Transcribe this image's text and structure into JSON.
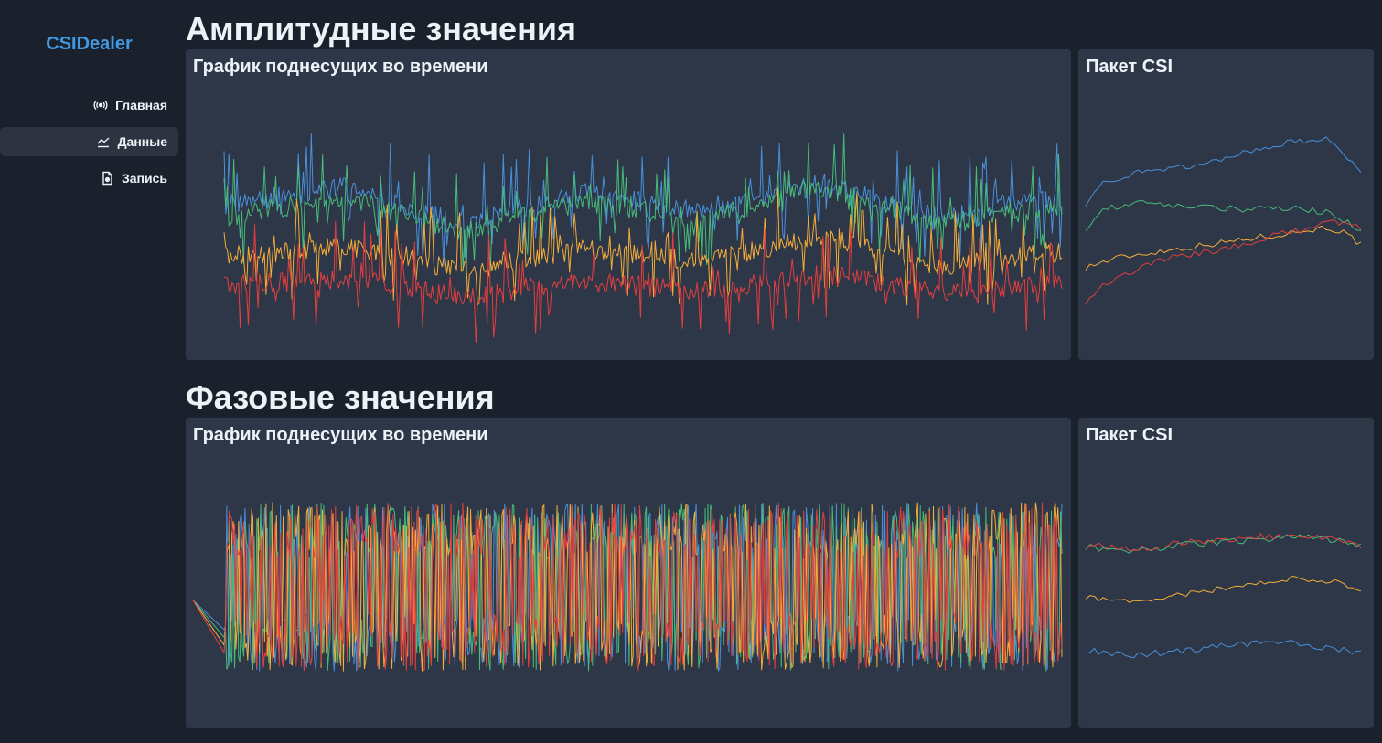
{
  "app": {
    "brand": "CSIDealer"
  },
  "nav": {
    "items": [
      {
        "label": "Главная",
        "icon": "broadcast-icon",
        "active": false
      },
      {
        "label": "Данные",
        "icon": "chart-line-icon",
        "active": true
      },
      {
        "label": "Запись",
        "icon": "file-record-icon",
        "active": false
      }
    ]
  },
  "colors": {
    "accent": "#4299e1",
    "series": [
      "#4a90d9",
      "#48bb78",
      "#f6ad37",
      "#e53e3e"
    ]
  },
  "sections": {
    "amplitude": {
      "title": "Амплитудные значения",
      "time_panel_title": "График поднесущих во времени",
      "packet_panel_title": "Пакет CSI"
    },
    "phase": {
      "title": "Фазовые значения",
      "time_panel_title": "График поднесущих во времени",
      "packet_panel_title": "Пакет CSI"
    }
  },
  "chart_data": [
    {
      "type": "line",
      "title": "График поднесущих во времени",
      "series": [
        {
          "values": [
            0.63,
            0.7,
            0.55,
            0.68,
            0.6,
            0.72,
            0.58,
            0.66
          ]
        },
        {
          "values": [
            0.58,
            0.66,
            0.52,
            0.64,
            0.57,
            0.7,
            0.55,
            0.62
          ]
        },
        {
          "values": [
            0.42,
            0.46,
            0.36,
            0.45,
            0.4,
            0.5,
            0.38,
            0.44
          ]
        },
        {
          "values": [
            0.3,
            0.33,
            0.26,
            0.32,
            0.28,
            0.35,
            0.27,
            0.31
          ]
        }
      ]
    },
    {
      "type": "line",
      "title": "Пакет CSI",
      "series": [
        {
          "values": [
            0.6,
            0.68,
            0.7,
            0.72,
            0.73,
            0.74,
            0.75,
            0.76,
            0.78,
            0.8,
            0.81,
            0.83,
            0.85,
            0.84,
            0.86,
            0.8,
            0.72
          ]
        },
        {
          "values": [
            0.5,
            0.57,
            0.59,
            0.6,
            0.6,
            0.59,
            0.59,
            0.58,
            0.58,
            0.57,
            0.58,
            0.58,
            0.58,
            0.57,
            0.56,
            0.53,
            0.48
          ]
        },
        {
          "values": [
            0.34,
            0.36,
            0.38,
            0.39,
            0.4,
            0.41,
            0.42,
            0.43,
            0.44,
            0.45,
            0.46,
            0.47,
            0.48,
            0.49,
            0.5,
            0.48,
            0.43
          ]
        },
        {
          "values": [
            0.2,
            0.27,
            0.3,
            0.33,
            0.36,
            0.38,
            0.39,
            0.4,
            0.41,
            0.43,
            0.45,
            0.47,
            0.48,
            0.5,
            0.53,
            0.52,
            0.5
          ]
        }
      ]
    },
    {
      "type": "line",
      "title": "График поднесущих во времени",
      "series": [
        {
          "values": [
            0.5,
            0.9,
            0.1,
            0.85,
            0.15,
            0.88,
            0.12,
            0.8
          ]
        },
        {
          "values": [
            0.5,
            0.12,
            0.86,
            0.2,
            0.9,
            0.1,
            0.84,
            0.18
          ]
        },
        {
          "values": [
            0.48,
            0.8,
            0.2,
            0.9,
            0.15,
            0.85,
            0.25,
            0.75
          ]
        },
        {
          "values": [
            0.5,
            0.2,
            0.88,
            0.15,
            0.82,
            0.2,
            0.9,
            0.12
          ]
        }
      ]
    },
    {
      "type": "line",
      "title": "Пакет CSI",
      "series": [
        {
          "values": [
            0.28,
            0.27,
            0.26,
            0.26,
            0.27,
            0.27,
            0.28,
            0.29,
            0.3,
            0.3,
            0.31,
            0.31,
            0.31,
            0.3,
            0.29,
            0.28,
            0.27
          ]
        },
        {
          "values": [
            0.7,
            0.69,
            0.68,
            0.68,
            0.69,
            0.7,
            0.71,
            0.71,
            0.72,
            0.72,
            0.73,
            0.73,
            0.74,
            0.74,
            0.73,
            0.72,
            0.7
          ]
        },
        {
          "values": [
            0.5,
            0.49,
            0.48,
            0.48,
            0.49,
            0.5,
            0.51,
            0.52,
            0.53,
            0.54,
            0.55,
            0.56,
            0.57,
            0.57,
            0.56,
            0.55,
            0.53
          ]
        },
        {
          "values": [
            0.71,
            0.7,
            0.69,
            0.69,
            0.7,
            0.71,
            0.72,
            0.72,
            0.73,
            0.73,
            0.74,
            0.74,
            0.75,
            0.74,
            0.74,
            0.72,
            0.7
          ]
        }
      ]
    }
  ]
}
